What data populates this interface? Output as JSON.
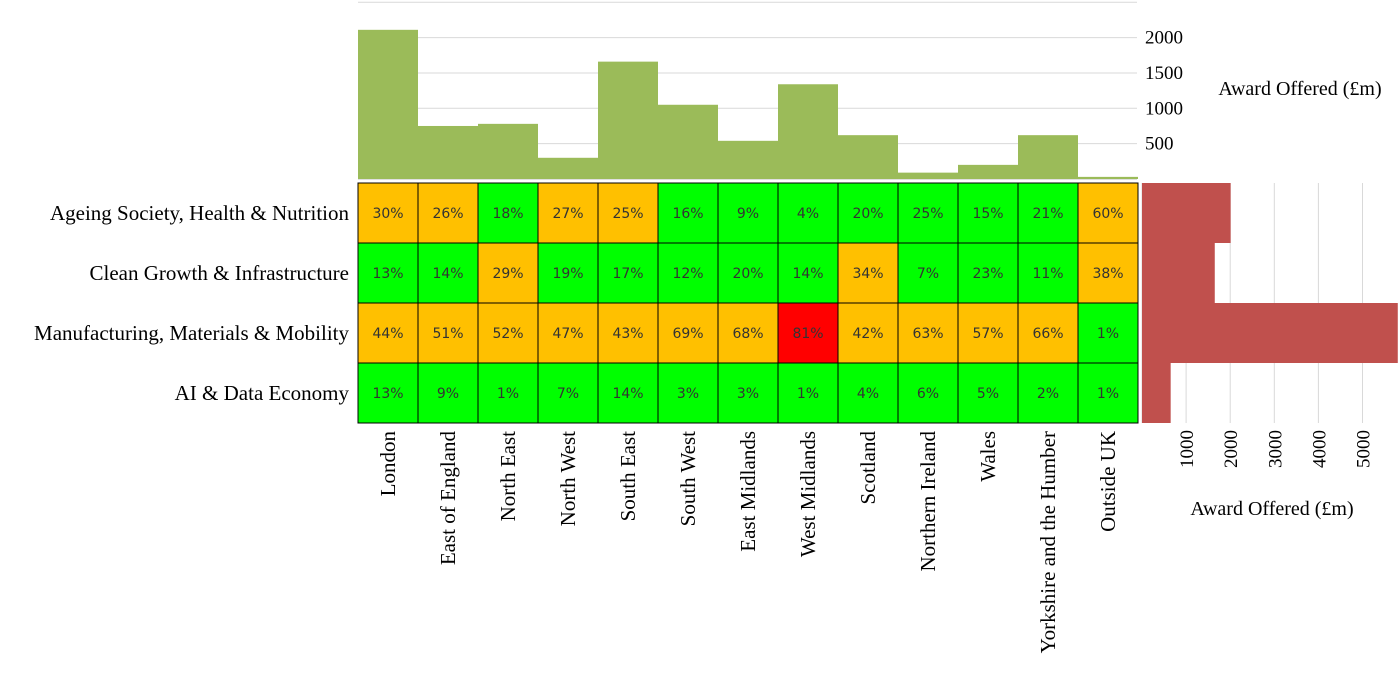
{
  "colors": {
    "top_bar": "#9bbb59",
    "side_bar": "#c0504d",
    "low": "#00ff00",
    "mid": "#ffc000",
    "high": "#ff0000",
    "grid": "#d9d9d9",
    "border": "#000000"
  },
  "chart_data": [
    {
      "type": "heatmap",
      "x": [
        "London",
        "East of England",
        "North East",
        "North West",
        "South East",
        "South West",
        "East Midlands",
        "West Midlands",
        "Scotland",
        "Northern Ireland",
        "Wales",
        "Yorkshire and the Humber",
        "Outside UK"
      ],
      "y": [
        "Ageing Society, Health & Nutrition",
        "Clean Growth & Infrastructure",
        "Manufacturing, Materials & Mobility",
        "AI & Data Economy"
      ],
      "values": [
        [
          30,
          26,
          18,
          27,
          25,
          16,
          9,
          4,
          20,
          25,
          15,
          21,
          60
        ],
        [
          13,
          14,
          29,
          19,
          17,
          12,
          20,
          14,
          34,
          7,
          23,
          11,
          38
        ],
        [
          44,
          51,
          52,
          47,
          43,
          69,
          68,
          81,
          42,
          63,
          57,
          66,
          1
        ],
        [
          13,
          9,
          1,
          7,
          14,
          3,
          3,
          1,
          4,
          6,
          5,
          2,
          1
        ]
      ],
      "labels": [
        [
          "30%",
          "26%",
          "18%",
          "27%",
          "25%",
          "16%",
          "9%",
          "4%",
          "20%",
          "25%",
          "15%",
          "21%",
          "60%"
        ],
        [
          "13%",
          "14%",
          "29%",
          "19%",
          "17%",
          "12%",
          "20%",
          "14%",
          "34%",
          "7%",
          "23%",
          "11%",
          "38%"
        ],
        [
          "44%",
          "51%",
          "52%",
          "47%",
          "43%",
          "69%",
          "68%",
          "81%",
          "42%",
          "63%",
          "57%",
          "66%",
          "1%"
        ],
        [
          "13%",
          "9%",
          "1%",
          "7%",
          "14%",
          "3%",
          "3%",
          "1%",
          "4%",
          "6%",
          "5%",
          "2%",
          "1%"
        ]
      ],
      "color_levels": [
        [
          "mid",
          "mid",
          "low",
          "mid",
          "mid",
          "low",
          "low",
          "low",
          "low",
          "low",
          "low",
          "low",
          "mid"
        ],
        [
          "low",
          "low",
          "mid",
          "low",
          "low",
          "low",
          "low",
          "low",
          "mid",
          "low",
          "low",
          "low",
          "mid"
        ],
        [
          "mid",
          "mid",
          "mid",
          "mid",
          "mid",
          "mid",
          "mid",
          "high",
          "mid",
          "mid",
          "mid",
          "mid",
          "low"
        ],
        [
          "low",
          "low",
          "low",
          "low",
          "low",
          "low",
          "low",
          "low",
          "low",
          "low",
          "low",
          "low",
          "low"
        ]
      ]
    },
    {
      "type": "bar",
      "orientation": "vertical",
      "categories": [
        "London",
        "East of England",
        "North East",
        "North West",
        "South East",
        "South West",
        "East Midlands",
        "West Midlands",
        "Scotland",
        "Northern Ireland",
        "Wales",
        "Yorkshire and the Humber",
        "Outside UK"
      ],
      "values": [
        2110,
        750,
        780,
        300,
        1660,
        1050,
        540,
        1340,
        620,
        90,
        200,
        620,
        30
      ],
      "ylabel": "Award Offered (£m)",
      "ylim": [
        0,
        2500
      ],
      "yticks": [
        500,
        1000,
        1500,
        2000
      ],
      "ytick_labels": [
        "500",
        "1000",
        "1500",
        "2000"
      ],
      "grid": true,
      "axis_side": "right"
    },
    {
      "type": "bar",
      "orientation": "horizontal",
      "categories": [
        "Ageing Society, Health & Nutrition",
        "Clean Growth & Infrastructure",
        "Manufacturing, Materials & Mobility",
        "AI & Data Economy"
      ],
      "values": [
        2010,
        1650,
        5800,
        650
      ],
      "xlabel": "Award Offered (£m)",
      "xlim": [
        0,
        5900
      ],
      "xticks": [
        1000,
        2000,
        3000,
        4000,
        5000
      ],
      "xtick_labels": [
        "1000",
        "2000",
        "3000",
        "4000",
        "5000"
      ],
      "grid": true,
      "axis_side": "bottom"
    }
  ]
}
